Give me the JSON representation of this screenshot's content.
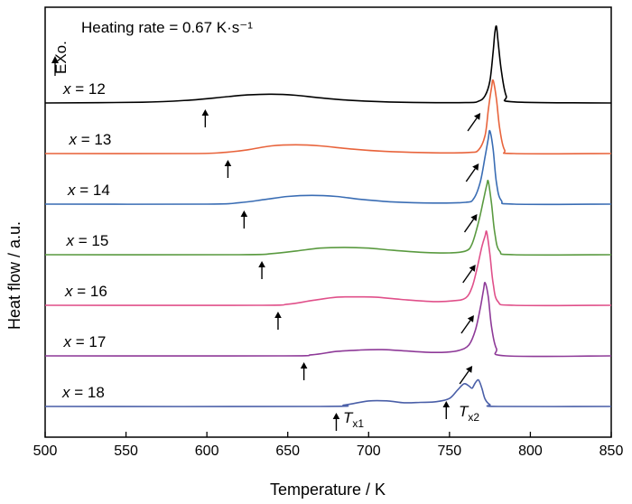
{
  "chart_data": {
    "type": "line",
    "title": "",
    "annotation_rate": "Heating rate = 0.67 K·s⁻¹",
    "exo_label": "EXo.",
    "xlabel": "Temperature / K",
    "ylabel": "Heat flow / a.u.",
    "xlim": [
      500,
      850
    ],
    "xticks": [
      500,
      550,
      600,
      650,
      700,
      750,
      800,
      850
    ],
    "grid": false,
    "legend": "none",
    "series": [
      {
        "name": "x = 12",
        "color": "#000000",
        "baseline": 0,
        "points": [
          [
            500,
            0
          ],
          [
            560,
            0.2
          ],
          [
            590,
            0.8
          ],
          [
            610,
            1.6
          ],
          [
            625,
            2.2
          ],
          [
            640,
            2.4
          ],
          [
            655,
            2.1
          ],
          [
            670,
            1.4
          ],
          [
            690,
            0.7
          ],
          [
            720,
            0.2
          ],
          [
            760,
            0.1
          ],
          [
            768,
            0.5
          ],
          [
            772,
            2
          ],
          [
            775,
            6
          ],
          [
            777,
            14
          ],
          [
            778,
            19
          ],
          [
            779,
            21
          ],
          [
            780,
            17
          ],
          [
            782,
            9
          ],
          [
            785,
            2
          ],
          [
            790,
            0.3
          ],
          [
            850,
            0
          ]
        ],
        "onset_arrow": 599,
        "peak_arrow": 768
      },
      {
        "name": "x = 13",
        "color": "#e8643c",
        "baseline": 1,
        "points": [
          [
            500,
            0
          ],
          [
            590,
            0
          ],
          [
            610,
            0.3
          ],
          [
            625,
            1.0
          ],
          [
            640,
            2.1
          ],
          [
            655,
            2.4
          ],
          [
            670,
            2.1
          ],
          [
            690,
            1.2
          ],
          [
            710,
            0.6
          ],
          [
            740,
            0.2
          ],
          [
            762,
            0.3
          ],
          [
            768,
            1
          ],
          [
            772,
            5
          ],
          [
            774,
            12
          ],
          [
            776,
            18
          ],
          [
            777,
            20
          ],
          [
            779,
            15
          ],
          [
            781,
            7
          ],
          [
            784,
            1
          ],
          [
            790,
            0
          ],
          [
            850,
            0
          ]
        ],
        "onset_arrow": 613,
        "peak_arrow": 767
      },
      {
        "name": "x = 14",
        "color": "#3a6db4",
        "baseline": 2,
        "points": [
          [
            500,
            0
          ],
          [
            600,
            0
          ],
          [
            620,
            0.4
          ],
          [
            635,
            1.2
          ],
          [
            650,
            2.1
          ],
          [
            665,
            2.4
          ],
          [
            680,
            2.1
          ],
          [
            695,
            1.3
          ],
          [
            715,
            0.6
          ],
          [
            740,
            0.3
          ],
          [
            760,
            0.5
          ],
          [
            765,
            1.5
          ],
          [
            769,
            6
          ],
          [
            772,
            13
          ],
          [
            774,
            18
          ],
          [
            775,
            20
          ],
          [
            777,
            15
          ],
          [
            779,
            6
          ],
          [
            782,
            1
          ],
          [
            790,
            0
          ],
          [
            850,
            0
          ]
        ],
        "onset_arrow": 623,
        "peak_arrow": 766
      },
      {
        "name": "x = 15",
        "color": "#5a9a40",
        "baseline": 3,
        "points": [
          [
            500,
            0
          ],
          [
            620,
            0
          ],
          [
            640,
            0.3
          ],
          [
            655,
            1.0
          ],
          [
            670,
            1.8
          ],
          [
            685,
            2.0
          ],
          [
            700,
            1.8
          ],
          [
            715,
            1.2
          ],
          [
            735,
            0.6
          ],
          [
            750,
            0.5
          ],
          [
            760,
            1
          ],
          [
            764,
            3
          ],
          [
            768,
            9
          ],
          [
            771,
            15
          ],
          [
            773,
            19
          ],
          [
            774,
            20
          ],
          [
            776,
            14
          ],
          [
            778,
            6
          ],
          [
            781,
            1
          ],
          [
            790,
            0
          ],
          [
            850,
            0
          ]
        ],
        "onset_arrow": 634,
        "peak_arrow": 765
      },
      {
        "name": "x = 16",
        "color": "#e0508a",
        "baseline": 4,
        "points": [
          [
            500,
            0
          ],
          [
            630,
            0
          ],
          [
            650,
            0.3
          ],
          [
            665,
            1.3
          ],
          [
            680,
            2.2
          ],
          [
            695,
            2.3
          ],
          [
            705,
            2.2
          ],
          [
            720,
            1.6
          ],
          [
            740,
            1.0
          ],
          [
            752,
            1.2
          ],
          [
            760,
            2
          ],
          [
            764,
            5
          ],
          [
            767,
            10
          ],
          [
            770,
            16
          ],
          [
            772,
            19
          ],
          [
            773,
            20
          ],
          [
            775,
            14
          ],
          [
            777,
            6
          ],
          [
            780,
            1
          ],
          [
            790,
            0
          ],
          [
            850,
            0
          ]
        ],
        "onset_arrow": 644,
        "peak_arrow": 764
      },
      {
        "name": "x = 17",
        "color": "#8e3a98",
        "baseline": 5,
        "points": [
          [
            500,
            0
          ],
          [
            645,
            0
          ],
          [
            665,
            0.3
          ],
          [
            680,
            1.2
          ],
          [
            695,
            1.6
          ],
          [
            708,
            1.7
          ],
          [
            718,
            1.5
          ],
          [
            735,
            1.0
          ],
          [
            748,
            1.0
          ],
          [
            756,
            1.5
          ],
          [
            762,
            3
          ],
          [
            766,
            7
          ],
          [
            769,
            13
          ],
          [
            771,
            18
          ],
          [
            772,
            20
          ],
          [
            774,
            16
          ],
          [
            776,
            8
          ],
          [
            779,
            2
          ],
          [
            785,
            0
          ],
          [
            850,
            0
          ]
        ],
        "onset_arrow": 660,
        "peak_arrow": 763
      },
      {
        "name": "x = 18",
        "color": "#4a5fa8",
        "baseline": 6,
        "points": [
          [
            500,
            0
          ],
          [
            670,
            0
          ],
          [
            685,
            0.4
          ],
          [
            700,
            1.5
          ],
          [
            712,
            1.5
          ],
          [
            722,
            1.0
          ],
          [
            732,
            1.1
          ],
          [
            742,
            1.3
          ],
          [
            750,
            2.2
          ],
          [
            755,
            4.5
          ],
          [
            759,
            6.2
          ],
          [
            762,
            5.6
          ],
          [
            764,
            5.0
          ],
          [
            766,
            6.5
          ],
          [
            768,
            7.2
          ],
          [
            770,
            5.0
          ],
          [
            772,
            2
          ],
          [
            775,
            0.5
          ],
          [
            780,
            0
          ],
          [
            850,
            0
          ]
        ],
        "onset_arrow": 680,
        "peak_arrow": 748
      }
    ],
    "annotations": {
      "tx1_symbol": "T",
      "tx1_sub": "x1",
      "tx2_symbol": "T",
      "tx2_sub": "x2"
    }
  }
}
